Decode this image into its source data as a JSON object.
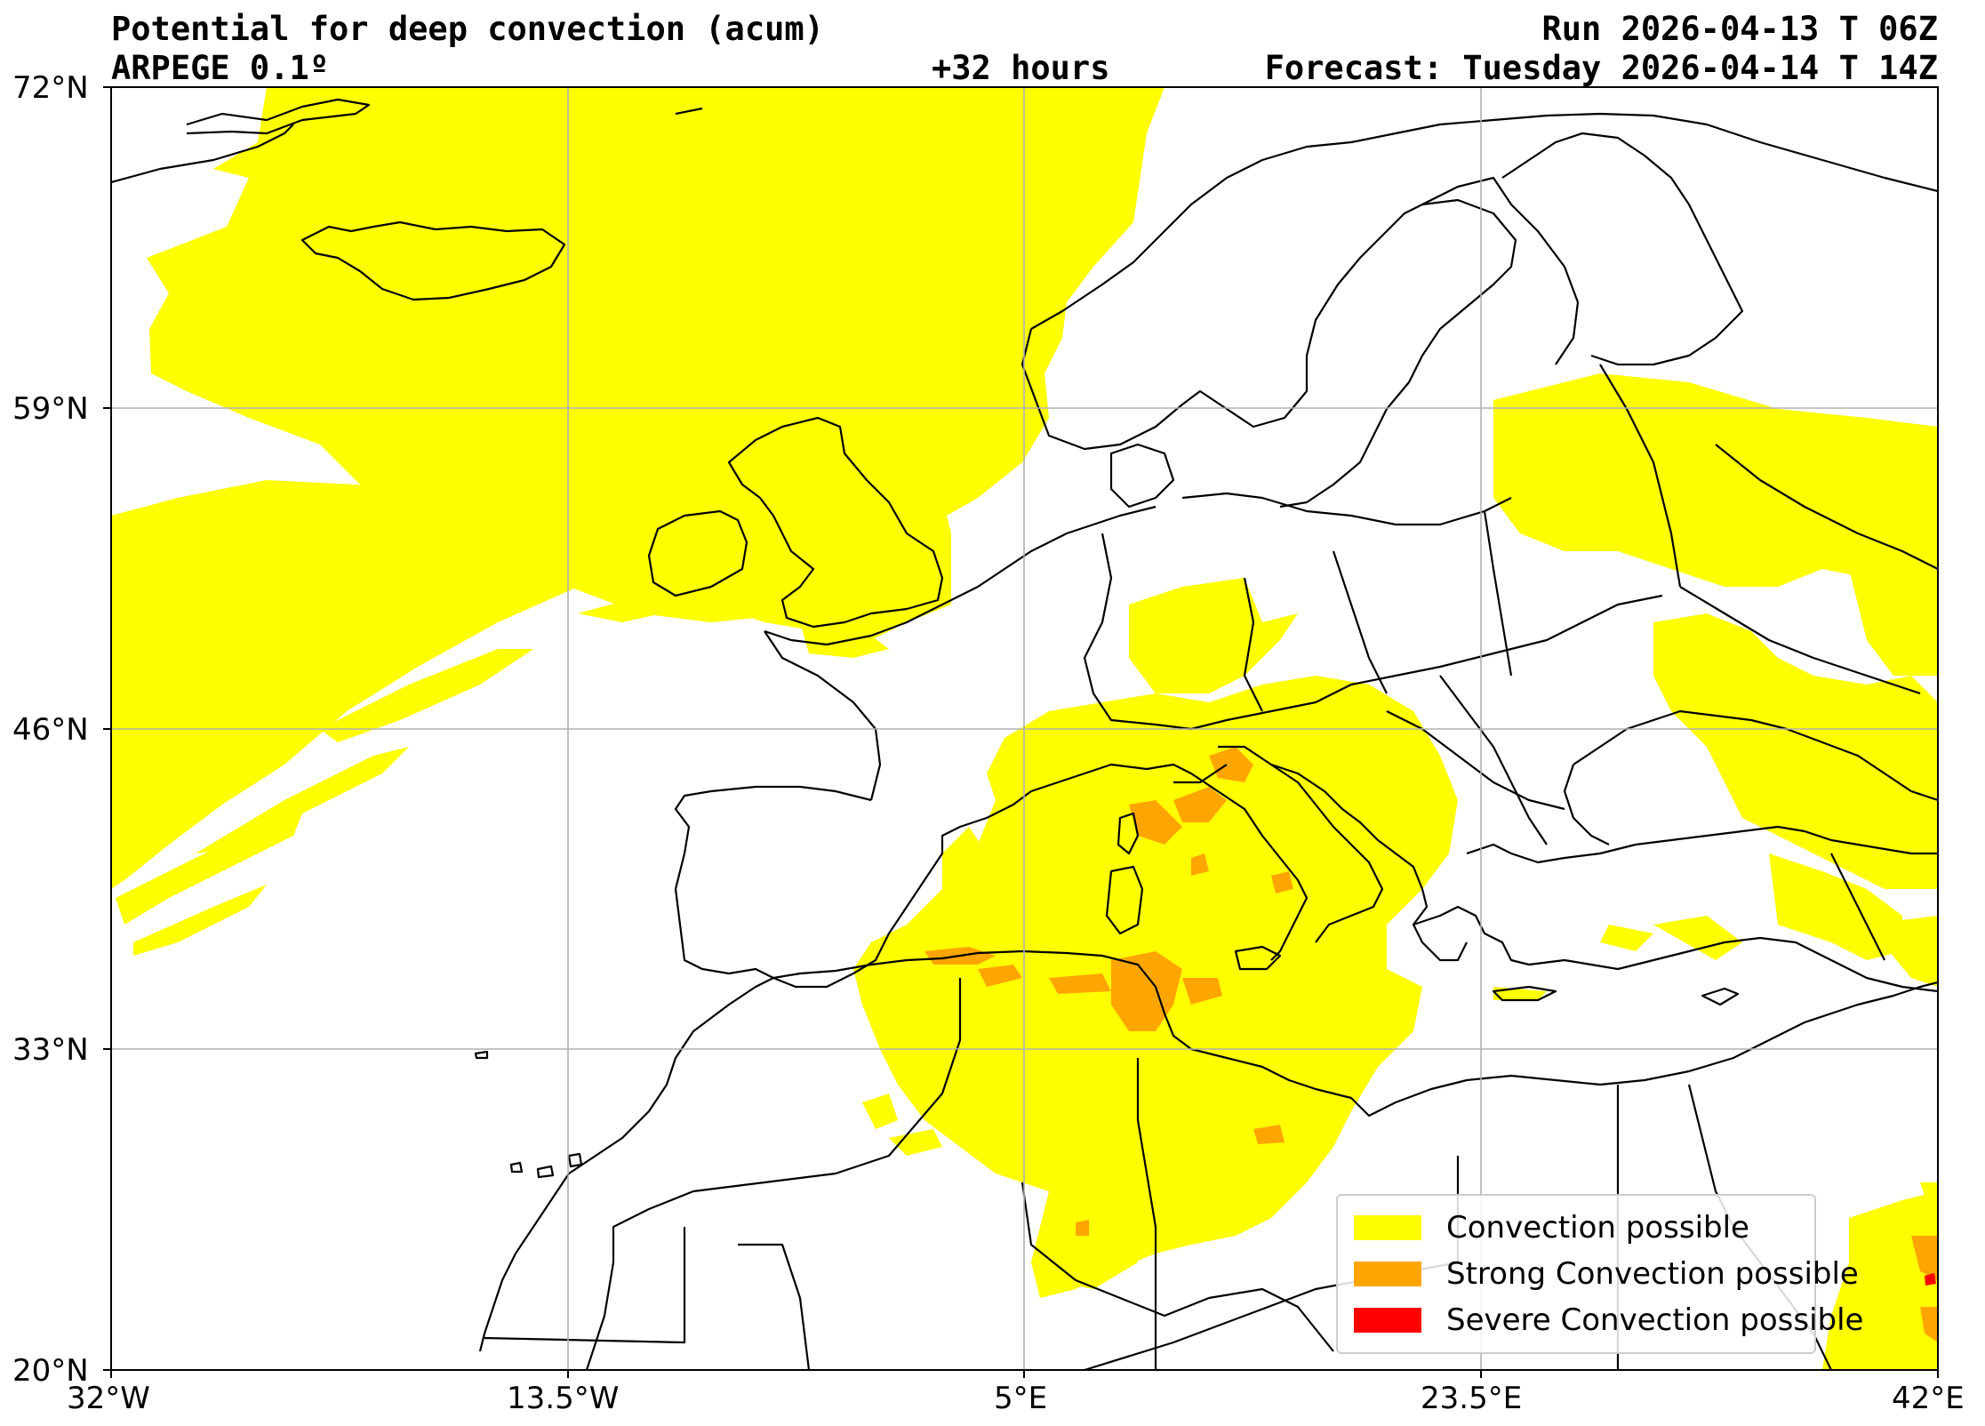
{
  "header": {
    "title_left": "Potential for deep convection (acum)",
    "model": "ARPEGE 0.1º",
    "lead_time": "+32 hours",
    "run": "Run 2026-04-13 T 06Z",
    "forecast": "Forecast: Tuesday 2026-04-14 T 14Z"
  },
  "axes": {
    "x_ticks": [
      {
        "value": -32,
        "label": "32°W"
      },
      {
        "value": -13.5,
        "label": "13.5°W"
      },
      {
        "value": 5,
        "label": "5°E"
      },
      {
        "value": 23.5,
        "label": "23.5°E"
      },
      {
        "value": 42,
        "label": "42°E"
      }
    ],
    "y_ticks": [
      {
        "value": 72,
        "label": "72°N"
      },
      {
        "value": 59,
        "label": "59°N"
      },
      {
        "value": 46,
        "label": "46°N"
      },
      {
        "value": 33,
        "label": "33°N"
      },
      {
        "value": 20,
        "label": "20°N"
      }
    ],
    "lon_range": [
      -32,
      42
    ],
    "lat_range": [
      20,
      72
    ],
    "grid": true
  },
  "legend": {
    "placement": "lower-right",
    "items": [
      {
        "label": "Convection possible",
        "color": "#ffff00"
      },
      {
        "label": "Strong Convection possible",
        "color": "#ffa500"
      },
      {
        "label": "Severe Convection possible",
        "color": "#ff0000"
      }
    ]
  },
  "colors": {
    "convection": "#ffff00",
    "strong": "#ffa500",
    "severe": "#ff0000",
    "coast": "#000000",
    "grid": "#b0b0b0"
  }
}
